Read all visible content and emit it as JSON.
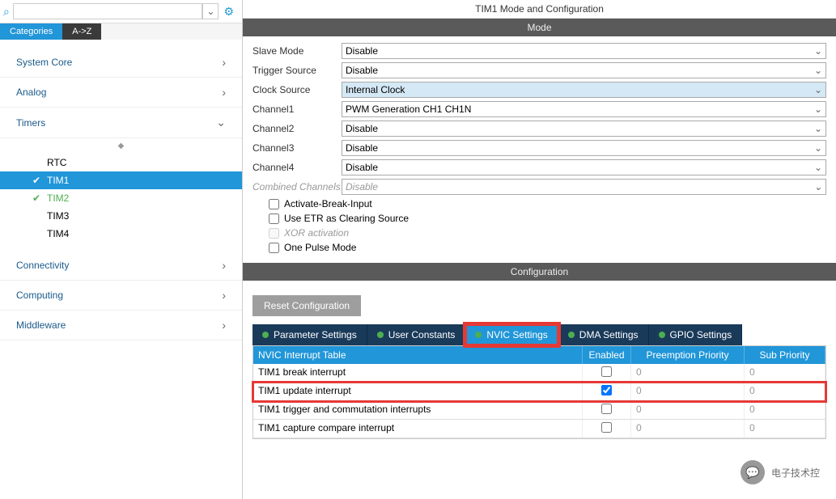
{
  "colors": {
    "primary": "#2196d8",
    "header_bg": "#5a5a5a",
    "tab_dark": "#1a3a5a",
    "highlight_red": "#e53935",
    "green": "#4caf50",
    "grey_btn": "#9e9e9e",
    "light_blue_bg": "#d4e8f5"
  },
  "search": {
    "placeholder": ""
  },
  "sidebar_tabs": {
    "categories": "Categories",
    "az": "A->Z"
  },
  "categories": {
    "system_core": "System Core",
    "analog": "Analog",
    "timers": "Timers",
    "connectivity": "Connectivity",
    "computing": "Computing",
    "middleware": "Middleware"
  },
  "timers_tree": {
    "rtc": "RTC",
    "tim1": "TIM1",
    "tim2": "TIM2",
    "tim3": "TIM3",
    "tim4": "TIM4"
  },
  "right": {
    "title": "TIM1 Mode and Configuration",
    "mode_header": "Mode",
    "config_header": "Configuration"
  },
  "mode_form": {
    "slave_mode_label": "Slave Mode",
    "slave_mode_value": "Disable",
    "trigger_source_label": "Trigger Source",
    "trigger_source_value": "Disable",
    "clock_source_label": "Clock Source",
    "clock_source_value": "Internal Clock",
    "channel1_label": "Channel1",
    "channel1_value": "PWM Generation CH1 CH1N",
    "channel2_label": "Channel2",
    "channel2_value": "Disable",
    "channel3_label": "Channel3",
    "channel3_value": "Disable",
    "channel4_label": "Channel4",
    "channel4_value": "Disable",
    "combined_label": "Combined Channels",
    "combined_value": "Disable",
    "activate_break": "Activate-Break-Input",
    "use_etr": "Use ETR as Clearing Source",
    "xor": "XOR activation",
    "one_pulse": "One Pulse Mode"
  },
  "config": {
    "reset_btn": "Reset Configuration",
    "tabs": {
      "param": "Parameter Settings",
      "user": "User Constants",
      "nvic": "NVIC Settings",
      "dma": "DMA Settings",
      "gpio": "GPIO Settings"
    }
  },
  "nvic": {
    "header_name": "NVIC Interrupt Table",
    "header_enabled": "Enabled",
    "header_preempt": "Preemption Priority",
    "header_sub": "Sub Priority",
    "rows": [
      {
        "name": "TIM1 break interrupt",
        "enabled": false,
        "preempt": "0",
        "sub": "0"
      },
      {
        "name": "TIM1 update interrupt",
        "enabled": true,
        "preempt": "0",
        "sub": "0"
      },
      {
        "name": "TIM1 trigger and commutation interrupts",
        "enabled": false,
        "preempt": "0",
        "sub": "0"
      },
      {
        "name": "TIM1 capture compare interrupt",
        "enabled": false,
        "preempt": "0",
        "sub": "0"
      }
    ]
  },
  "watermark": {
    "text": "电子技术控"
  }
}
